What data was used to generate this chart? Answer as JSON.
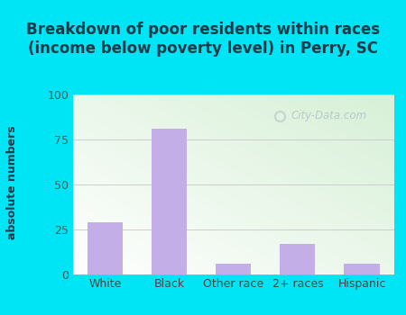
{
  "categories": [
    "White",
    "Black",
    "Other race",
    "2+ races",
    "Hispanic"
  ],
  "values": [
    29,
    81,
    6,
    17,
    6
  ],
  "bar_color": "#c4aee8",
  "title": "Breakdown of poor residents within races\n(income below poverty level) in Perry, SC",
  "ylabel": "absolute numbers",
  "ylim": [
    0,
    100
  ],
  "yticks": [
    0,
    25,
    50,
    75,
    100
  ],
  "title_color": "#1a3a4a",
  "title_fontsize": 12,
  "label_fontsize": 9,
  "tick_fontsize": 9,
  "bg_outer": "#00e5f5",
  "grid_color": "#cccccc",
  "watermark": "City-Data.com",
  "plot_bg_colors": [
    "#ffffff",
    "#d8f0d8"
  ],
  "bar_width": 0.55
}
